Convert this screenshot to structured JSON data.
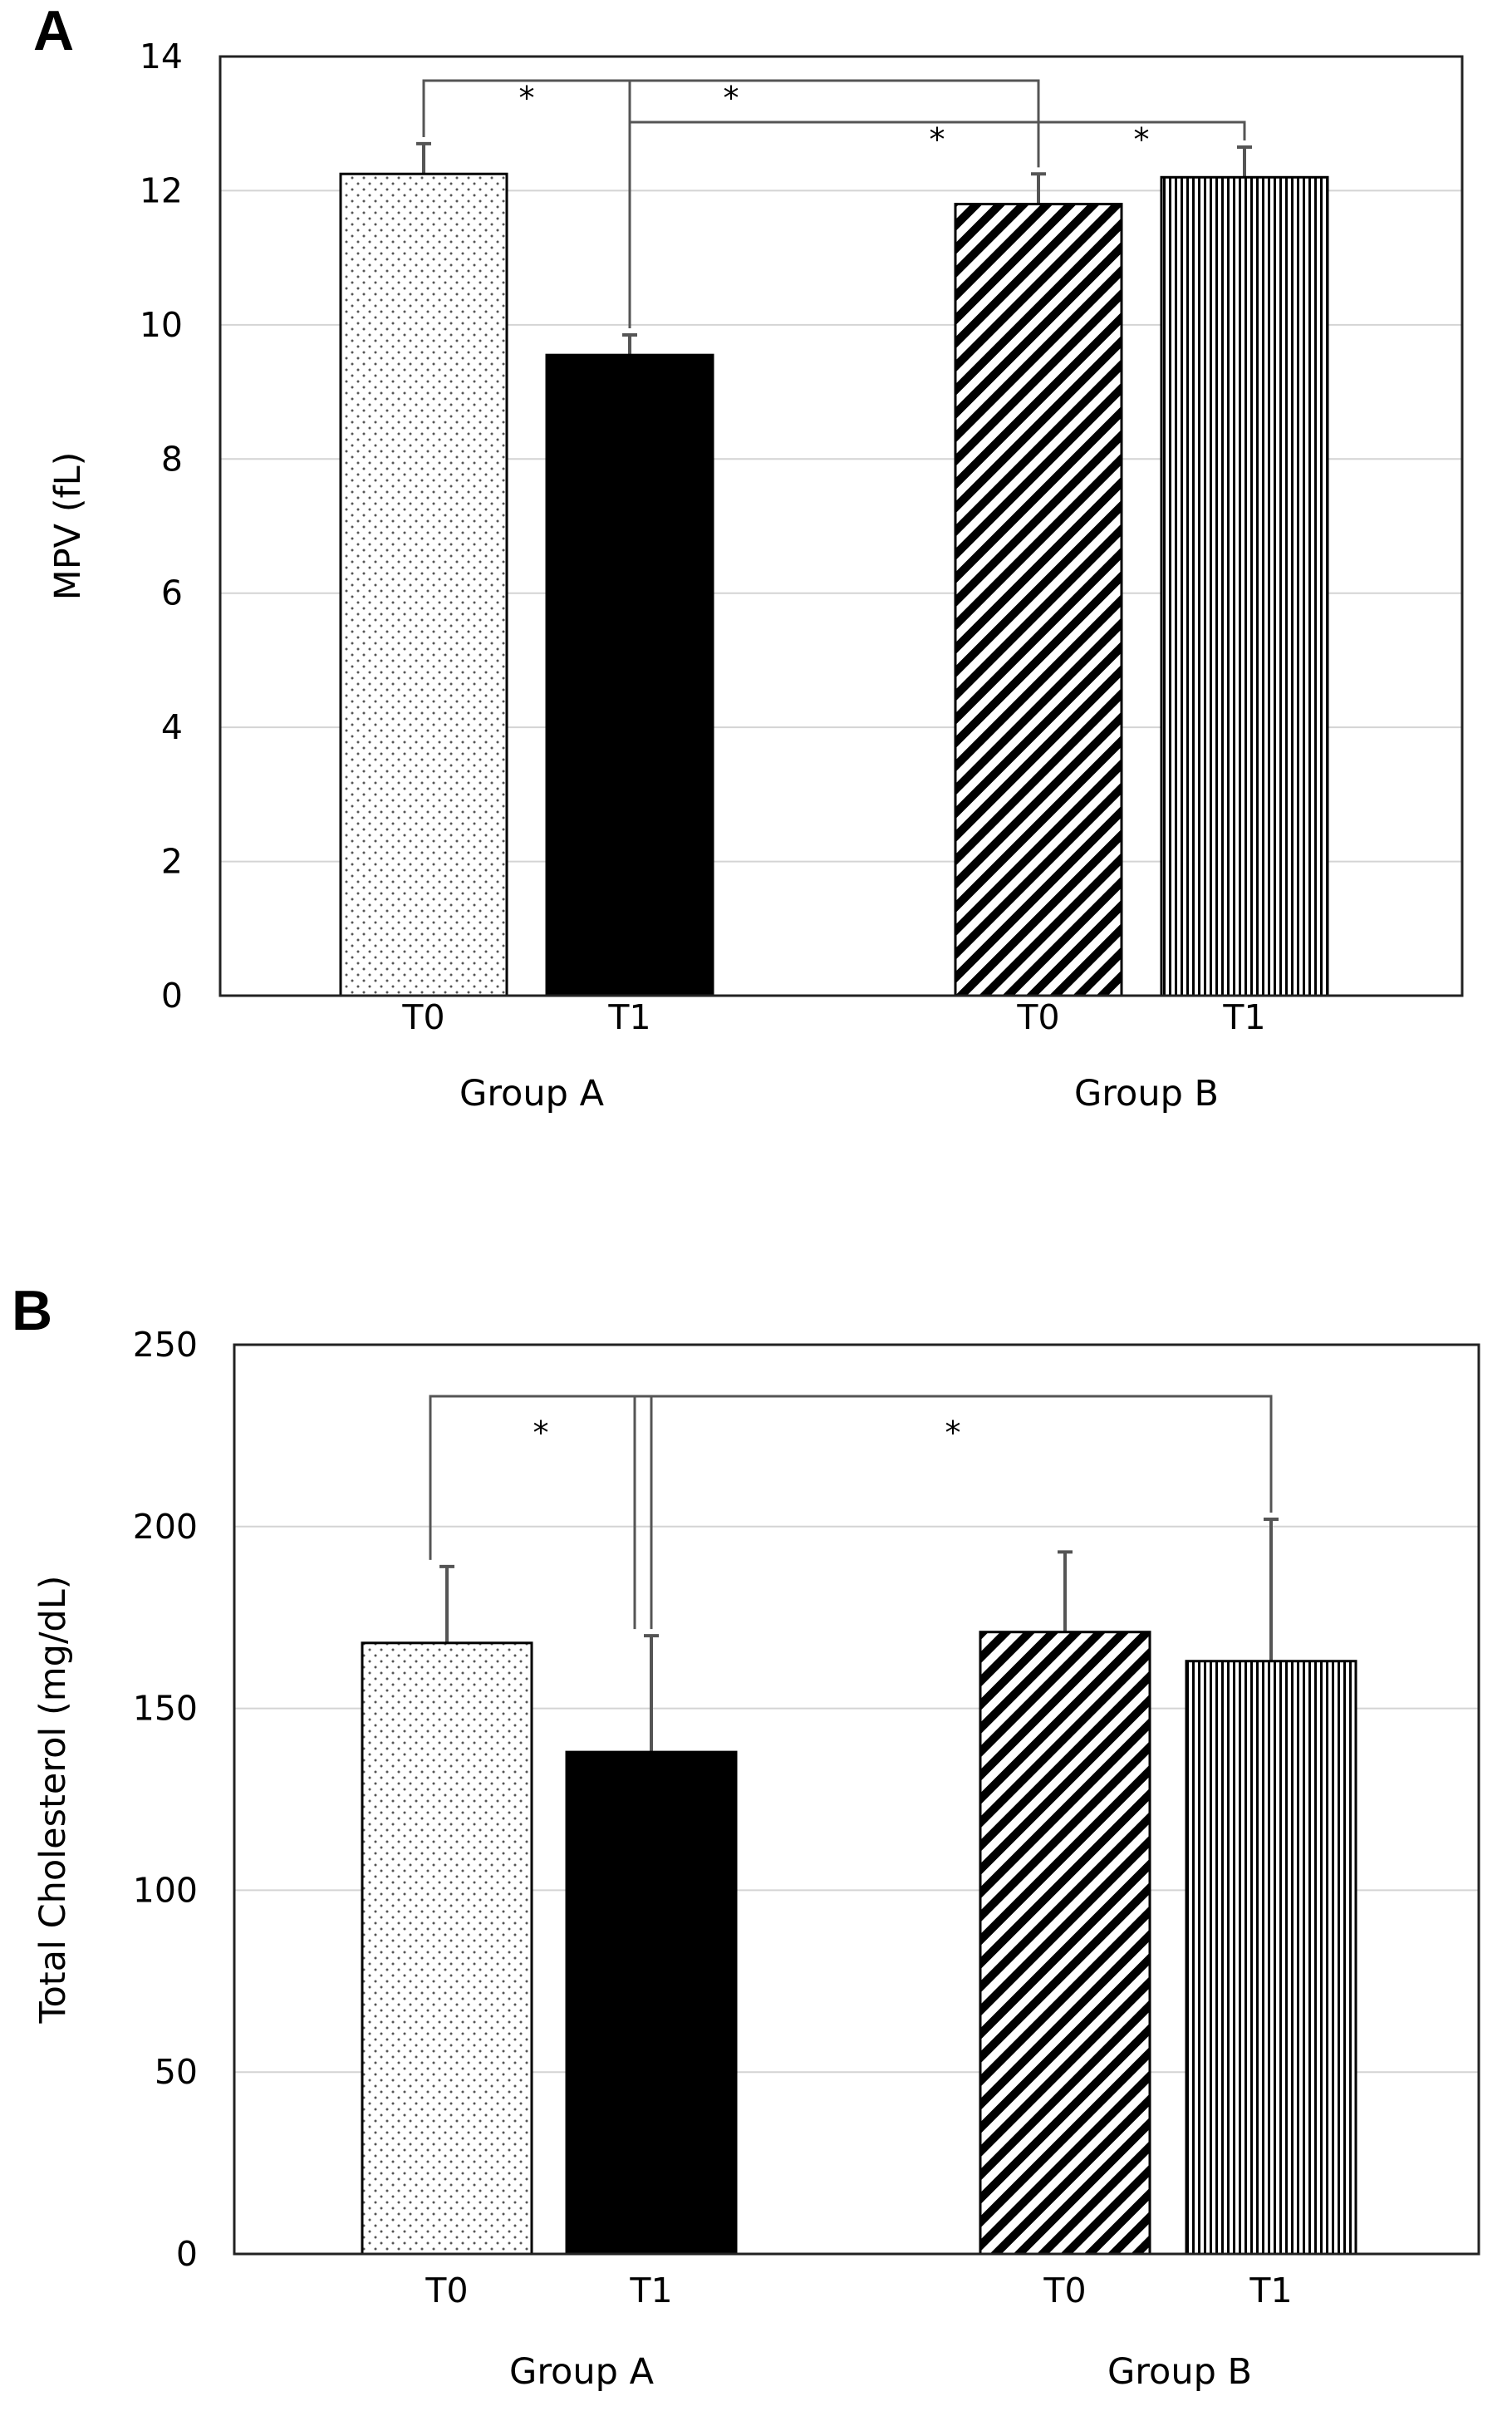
{
  "chart_data": [
    {
      "panel": "A",
      "type": "bar",
      "ylabel": "MPV (fL)",
      "ylim": [
        0,
        14
      ],
      "yticks": [
        "0",
        "2",
        "4",
        "6",
        "8",
        "10",
        "12",
        "14"
      ],
      "grid": true,
      "groups": [
        "Group A",
        "Group B"
      ],
      "categories": [
        "T0",
        "T1",
        "T0",
        "T1"
      ],
      "bars": [
        {
          "group": "Group A",
          "label": "T0",
          "value": 12.25,
          "error": 0.45,
          "pattern": "dots"
        },
        {
          "group": "Group A",
          "label": "T1",
          "value": 9.55,
          "error": 0.3,
          "pattern": "solid"
        },
        {
          "group": "Group B",
          "label": "T0",
          "value": 11.8,
          "error": 0.45,
          "pattern": "diagonal"
        },
        {
          "group": "Group B",
          "label": "T1",
          "value": 12.2,
          "error": 0.45,
          "pattern": "vertical"
        }
      ],
      "significance": [
        {
          "from": 0,
          "to": 1,
          "label": "*"
        },
        {
          "from": 1,
          "to": 3,
          "label": "*"
        },
        {
          "from": 0,
          "to": 2,
          "label": "*"
        },
        {
          "from": 2,
          "to": 3,
          "label": "*"
        }
      ]
    },
    {
      "panel": "B",
      "type": "bar",
      "ylabel": "Total Cholesterol (mg/dL)",
      "ylim": [
        0,
        250
      ],
      "yticks": [
        "0",
        "50",
        "100",
        "150",
        "200",
        "250"
      ],
      "grid": true,
      "groups": [
        "Group A",
        "Group B"
      ],
      "categories": [
        "T0",
        "T1",
        "T0",
        "T1"
      ],
      "bars": [
        {
          "group": "Group A",
          "label": "T0",
          "value": 168,
          "error": 21,
          "pattern": "dots"
        },
        {
          "group": "Group A",
          "label": "T1",
          "value": 138,
          "error": 32,
          "pattern": "solid"
        },
        {
          "group": "Group B",
          "label": "T0",
          "value": 171,
          "error": 22,
          "pattern": "diagonal"
        },
        {
          "group": "Group B",
          "label": "T1",
          "value": 163,
          "error": 39,
          "pattern": "vertical"
        }
      ],
      "significance": [
        {
          "from": 0,
          "to": 1,
          "label": "*"
        },
        {
          "from": 1,
          "to": 3,
          "label": "*"
        }
      ]
    }
  ]
}
